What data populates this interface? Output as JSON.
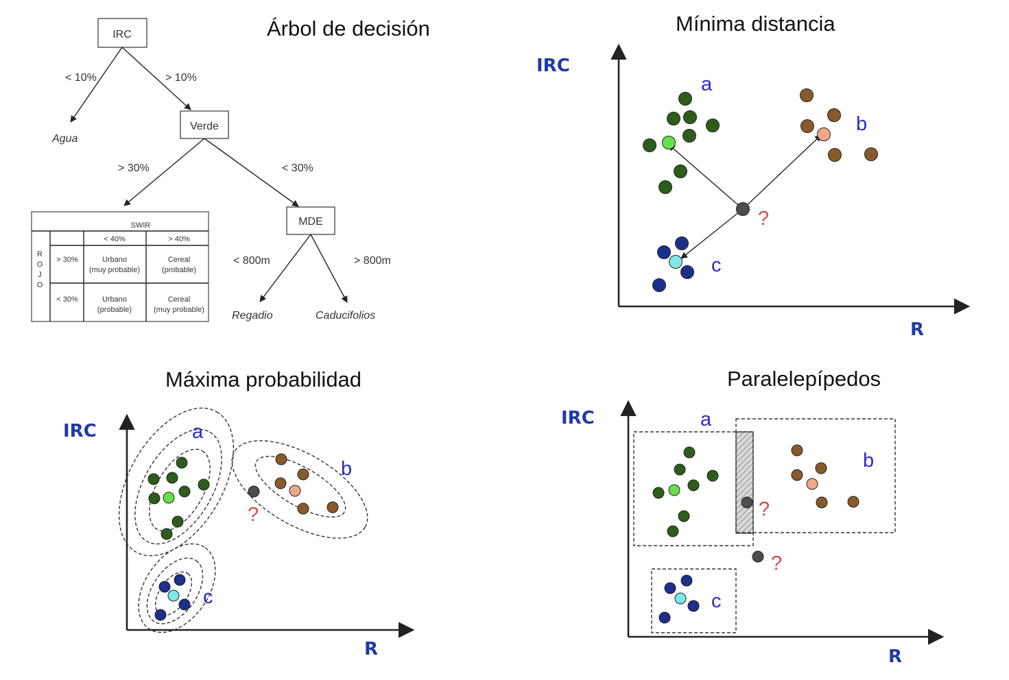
{
  "colors": {
    "class_a": "#2d5d1b",
    "class_a_mean": "#66e04a",
    "class_b": "#8a5a2b",
    "class_b_mean": "#f0a88a",
    "class_c": "#1d2f8c",
    "class_c_mean": "#7ee8e8",
    "unknown": "#4d4d4d"
  },
  "panels": {
    "tree": {
      "title": "Árbol de decisión",
      "root": "IRC",
      "edge_left": "< 10%",
      "edge_right": "> 10%",
      "leaf_agua": "Agua",
      "node_verde": "Verde",
      "edge_verde_left": "> 30%",
      "edge_verde_right": "< 30%",
      "node_mde": "MDE",
      "edge_mde_left": "< 800m",
      "edge_mde_right": "> 800m",
      "leaf_regadio": "Regadio",
      "leaf_caducifolios": "Caducifolios",
      "table": {
        "header": "SWIR",
        "row_label": [
          "R",
          "O",
          "J",
          "O"
        ],
        "col1": "< 40%",
        "col2": "> 40%",
        "row1": "> 30%",
        "row2": "< 30%",
        "c11a": "Urbano",
        "c11b": "(muy probable)",
        "c12a": "Cereal",
        "c12b": "(probable)",
        "c21a": "Urbano",
        "c21b": "(probable)",
        "c22a": "Cereal",
        "c22b": "(muy probable)"
      }
    },
    "min_dist": {
      "title": "Mínima distancia",
      "ylabel": "IRC",
      "xlabel": "R",
      "label_a": "a",
      "label_b": "b",
      "label_c": "c",
      "unknown_label": "?"
    },
    "max_prob": {
      "title": "Máxima probabilidad",
      "ylabel": "IRC",
      "xlabel": "R",
      "label_a": "a",
      "label_b": "b",
      "label_c": "c",
      "unknown_label": "?"
    },
    "parallel": {
      "title": "Paralelepípedos",
      "ylabel": "IRC",
      "xlabel": "R",
      "label_a": "a",
      "label_b": "b",
      "label_c": "c",
      "unknown_label_1": "?",
      "unknown_label_2": "?"
    }
  }
}
